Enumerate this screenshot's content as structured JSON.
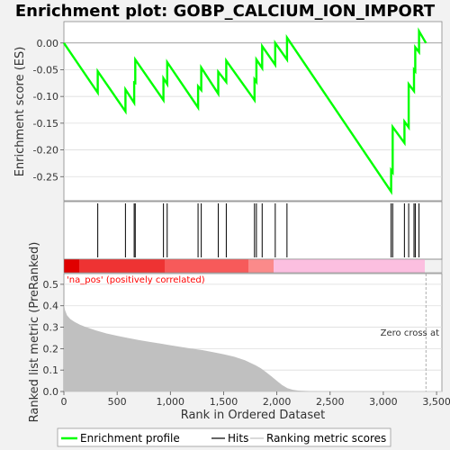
{
  "title": "Enrichment plot: GOBP_CALCIUM_ION_IMPORT",
  "colors": {
    "es_line": "#00ff00",
    "hit": "#000000",
    "metric_fill": "#c0c0c0",
    "zero_line": "#999999",
    "grid": "#dddddd",
    "pos_label": "#ff0000"
  },
  "chart_data": [
    {
      "type": "line",
      "name": "enrichment-score-panel",
      "ylabel": "Enrichment score (ES)",
      "xlim": [
        0,
        3550
      ],
      "ylim": [
        -0.295,
        0.04
      ],
      "yticks": [
        0.0,
        -0.05,
        -0.1,
        -0.15,
        -0.2,
        -0.25
      ],
      "ytick_labels": [
        "0.00",
        "-0.05",
        "-0.10",
        "-0.15",
        "-0.20",
        "-0.25"
      ],
      "grid": true,
      "series": [
        {
          "name": "Enrichment profile",
          "x": [
            0,
            318,
            318,
            578,
            578,
            660,
            660,
            670,
            670,
            935,
            935,
            970,
            970,
            1260,
            1260,
            1290,
            1290,
            1450,
            1450,
            1525,
            1525,
            1790,
            1790,
            1808,
            1808,
            1862,
            1862,
            1985,
            1985,
            2095,
            2095,
            3073,
            3073,
            3088,
            3088,
            3198,
            3198,
            3238,
            3238,
            3288,
            3288,
            3300,
            3300,
            3335,
            3335,
            3400
          ],
          "y": [
            0.0,
            -0.093,
            -0.053,
            -0.128,
            -0.087,
            -0.112,
            -0.074,
            -0.075,
            -0.031,
            -0.107,
            -0.066,
            -0.077,
            -0.036,
            -0.121,
            -0.081,
            -0.088,
            -0.046,
            -0.095,
            -0.054,
            -0.073,
            -0.033,
            -0.107,
            -0.068,
            -0.073,
            -0.031,
            -0.047,
            -0.006,
            -0.041,
            0.0,
            -0.031,
            0.01,
            -0.278,
            -0.238,
            -0.242,
            -0.157,
            -0.187,
            -0.147,
            -0.158,
            -0.077,
            -0.09,
            -0.05,
            -0.053,
            -0.008,
            -0.017,
            0.022,
            0.0
          ]
        }
      ]
    },
    {
      "type": "scatter",
      "name": "hits-panel",
      "series": [
        {
          "name": "Hits",
          "x": [
            318,
            578,
            660,
            670,
            935,
            970,
            1260,
            1290,
            1450,
            1525,
            1790,
            1808,
            1862,
            1985,
            2095,
            3073,
            3088,
            3198,
            3238,
            3288,
            3300,
            3335
          ]
        }
      ]
    },
    {
      "type": "area",
      "name": "ranked-metric-panel",
      "xlabel": "Rank in Ordered Dataset",
      "ylabel": "Ranked list metric (PreRanked)",
      "xlim": [
        0,
        3550
      ],
      "ylim": [
        0,
        0.55
      ],
      "xticks": [
        0,
        500,
        1000,
        1500,
        2000,
        2500,
        3000,
        3500
      ],
      "xtick_labels": [
        "0",
        "500",
        "1,000",
        "1,500",
        "2,000",
        "2,500",
        "3,000",
        "3,500"
      ],
      "yticks": [
        0.0,
        0.1,
        0.2,
        0.3,
        0.4,
        0.5
      ],
      "ytick_labels": [
        "0.0",
        "0.1",
        "0.2",
        "0.3",
        "0.4",
        "0.5"
      ],
      "grid": true,
      "series": [
        {
          "name": "Ranking metric scores",
          "x": [
            0,
            10,
            30,
            60,
            100,
            150,
            200,
            300,
            400,
            500,
            600,
            700,
            800,
            900,
            1000,
            1100,
            1200,
            1300,
            1400,
            1500,
            1600,
            1700,
            1800,
            1850,
            1900,
            1950,
            2000,
            2050,
            2100,
            2150,
            2200,
            2300,
            2500,
            3000,
            3400
          ],
          "y": [
            0.41,
            0.38,
            0.355,
            0.338,
            0.325,
            0.312,
            0.302,
            0.285,
            0.271,
            0.26,
            0.25,
            0.24,
            0.232,
            0.224,
            0.216,
            0.208,
            0.2,
            0.193,
            0.184,
            0.174,
            0.162,
            0.146,
            0.122,
            0.108,
            0.09,
            0.07,
            0.05,
            0.03,
            0.015,
            0.008,
            0.004,
            0.002,
            0.001,
            0.0005,
            0.0
          ]
        }
      ],
      "annotations": [
        "'na_pos' (positively correlated)",
        "Zero cross at"
      ]
    }
  ],
  "legend": {
    "items": [
      "Enrichment profile",
      "Hits",
      "Ranking metric scores"
    ]
  }
}
